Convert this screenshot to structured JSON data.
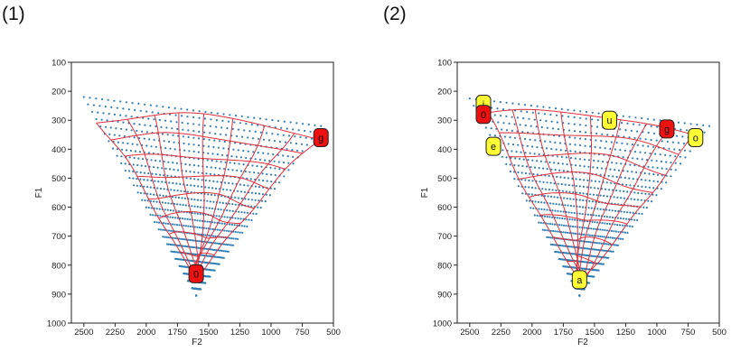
{
  "panels": [
    {
      "label": "(1)"
    },
    {
      "label": "(2)"
    }
  ],
  "colors": {
    "dots": "#2f7fb4",
    "grid": "#e0303c",
    "red_marker": "#ee1111",
    "yellow_marker": "#ffff33",
    "axis": "#222222"
  },
  "chart_data": [
    {
      "type": "scatter",
      "title": "",
      "xlabel": "F2",
      "ylabel": "F1",
      "xlim": [
        2600,
        500
      ],
      "ylim": [
        100,
        1000
      ],
      "x_axis_reversed": true,
      "y_axis_reversed": true,
      "xticks": [
        2500,
        2250,
        2000,
        1750,
        1500,
        1250,
        1000,
        750,
        500
      ],
      "yticks": [
        100,
        200,
        300,
        400,
        500,
        600,
        700,
        800,
        900,
        1000
      ],
      "dot_region": {
        "corners": [
          [
            2500,
            220
          ],
          [
            600,
            320
          ],
          [
            1600,
            905
          ]
        ]
      },
      "grid_mesh": {
        "corners": [
          [
            2400,
            300
          ],
          [
            620,
            360
          ],
          [
            1600,
            830
          ]
        ],
        "rows": 8,
        "cols": 8
      },
      "markers": [
        {
          "label": "g",
          "f2": 600,
          "f1": 360,
          "color": "red"
        },
        {
          "label": "0",
          "f2": 1600,
          "f1": 830,
          "color": "red"
        }
      ]
    },
    {
      "type": "scatter",
      "title": "",
      "xlabel": "F2",
      "ylabel": "F1",
      "xlim": [
        2600,
        500
      ],
      "ylim": [
        100,
        1000
      ],
      "x_axis_reversed": true,
      "y_axis_reversed": true,
      "xticks": [
        2500,
        2250,
        2000,
        1750,
        1500,
        1250,
        1000,
        750,
        500
      ],
      "yticks": [
        100,
        200,
        300,
        400,
        500,
        600,
        700,
        800,
        900,
        1000
      ],
      "dot_region": {
        "corners": [
          [
            2500,
            225
          ],
          [
            580,
            320
          ],
          [
            1620,
            905
          ]
        ]
      },
      "grid_mesh": {
        "corners": [
          [
            2380,
            280
          ],
          [
            680,
            360
          ],
          [
            1620,
            850
          ]
        ],
        "rows": 8,
        "cols": 8
      },
      "markers": [
        {
          "label": "i",
          "f2": 2390,
          "f1": 245,
          "color": "yellow"
        },
        {
          "label": "0",
          "f2": 2390,
          "f1": 280,
          "color": "red"
        },
        {
          "label": "e",
          "f2": 2310,
          "f1": 390,
          "color": "yellow"
        },
        {
          "label": "u",
          "f2": 1380,
          "f1": 300,
          "color": "yellow"
        },
        {
          "label": "g",
          "f2": 920,
          "f1": 330,
          "color": "red"
        },
        {
          "label": "o",
          "f2": 690,
          "f1": 360,
          "color": "yellow"
        },
        {
          "label": "a",
          "f2": 1620,
          "f1": 850,
          "color": "yellow"
        }
      ]
    }
  ]
}
